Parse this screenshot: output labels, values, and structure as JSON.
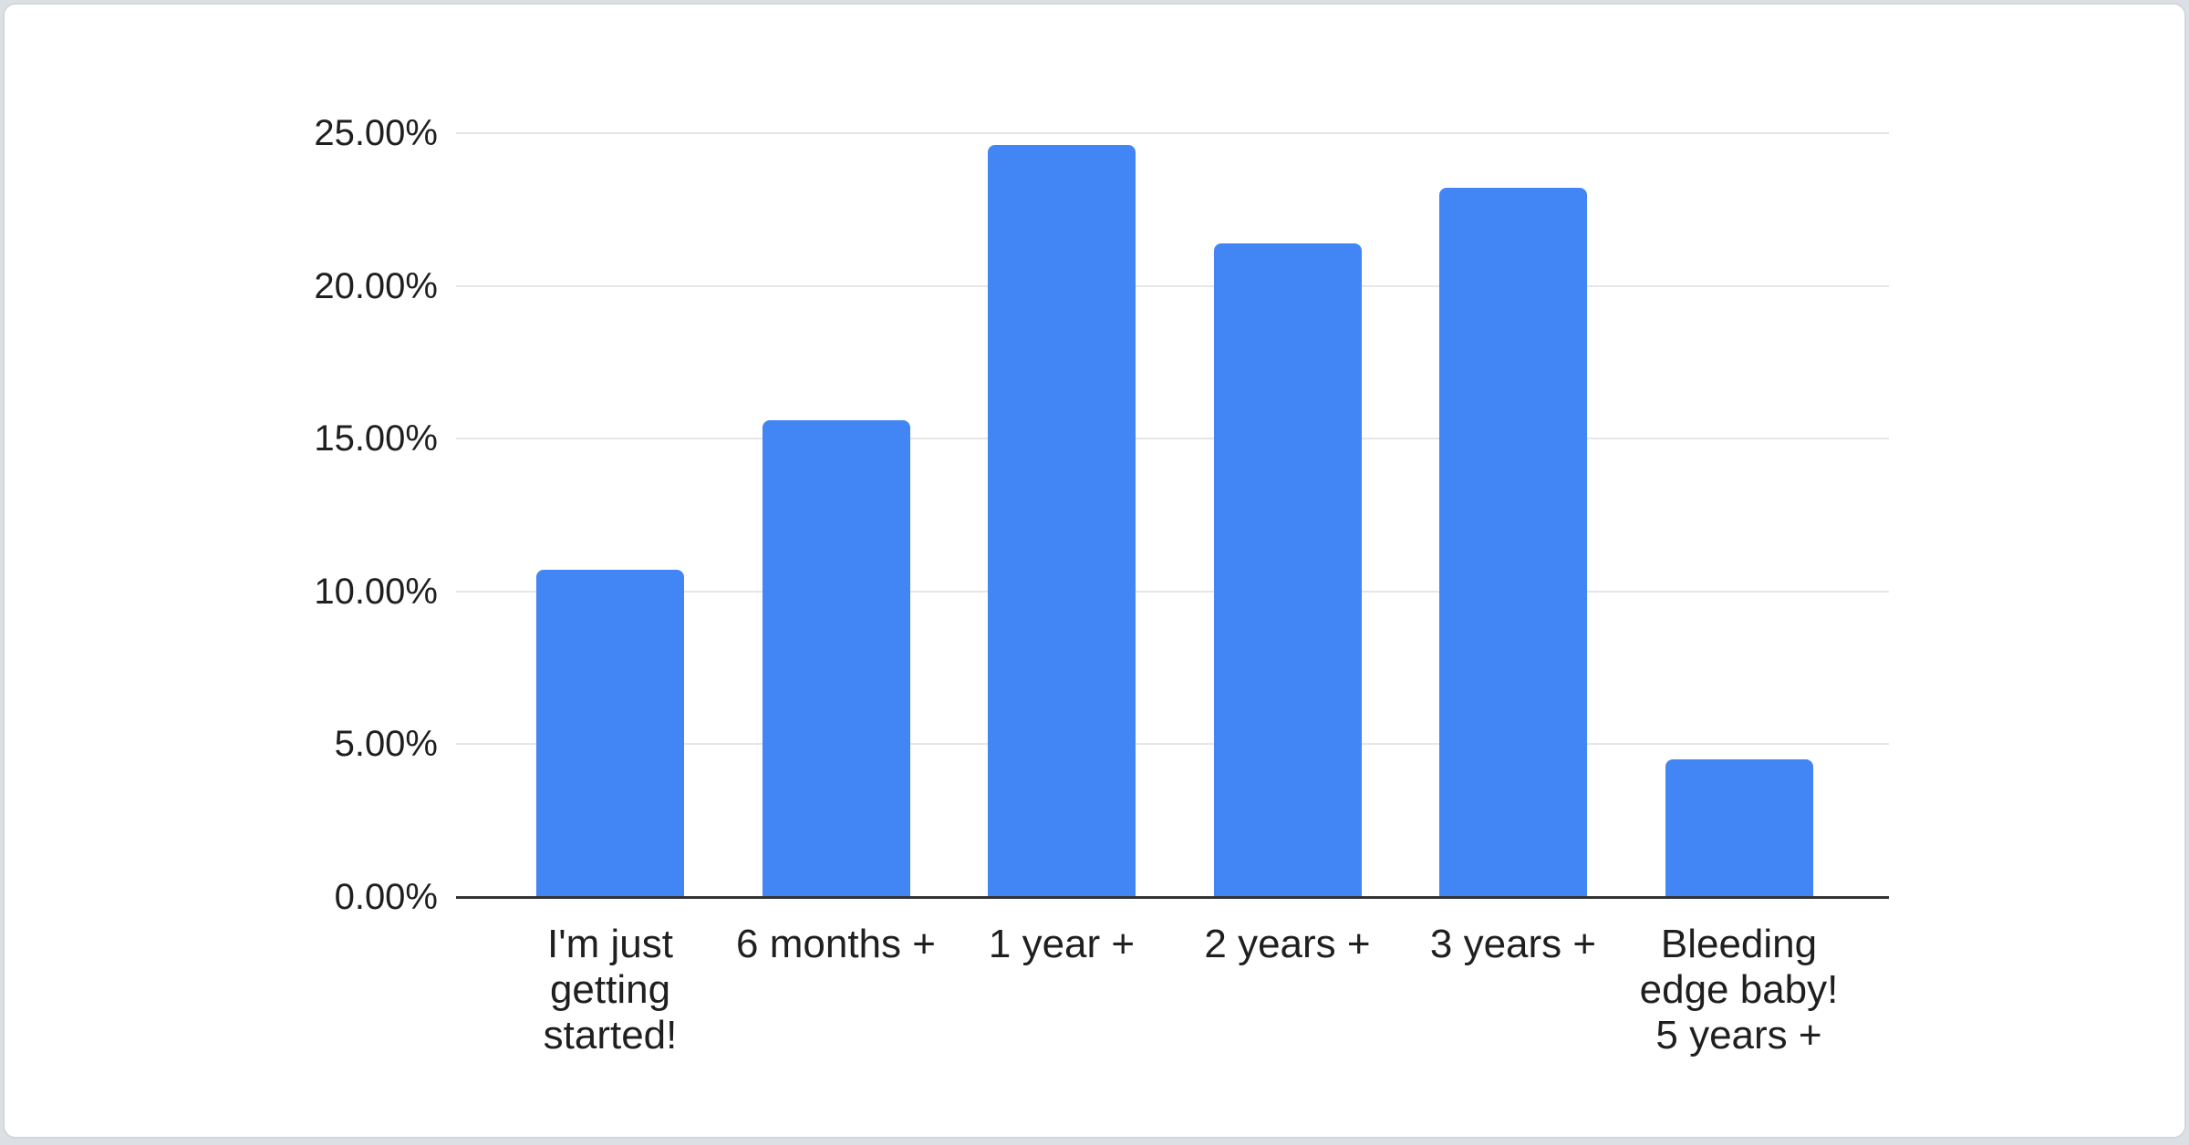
{
  "page": {
    "background_color": "#dce0e5",
    "card_background": "#ffffff",
    "card_border_color": "#d3d7dc"
  },
  "chart_data": {
    "type": "bar",
    "title": "",
    "xlabel": "",
    "ylabel": "",
    "categories": [
      "I'm just getting started!",
      "6 months +",
      "1 year +",
      "2 years +",
      "3 years +",
      "Bleeding edge baby! 5 years +"
    ],
    "category_lines": [
      [
        "I'm just",
        "getting",
        "started!"
      ],
      [
        "6 months +"
      ],
      [
        "1 year +"
      ],
      [
        "2 years +"
      ],
      [
        "3 years +"
      ],
      [
        "Bleeding",
        "edge baby!",
        "5 years +"
      ]
    ],
    "values": [
      10.7,
      15.6,
      24.6,
      21.4,
      23.2,
      4.5
    ],
    "unit": "%",
    "ylim": [
      0,
      25
    ],
    "ytick_step": 5,
    "ytick_labels": [
      "0.00%",
      "5.00%",
      "10.00%",
      "15.00%",
      "20.00%",
      "25.00%"
    ],
    "grid": true,
    "legend": "none",
    "bar_color": "#4285F4",
    "gridline_color": "#e6e6e6",
    "axis_line_color": "#333333",
    "label_color": "#1f1f1f"
  }
}
